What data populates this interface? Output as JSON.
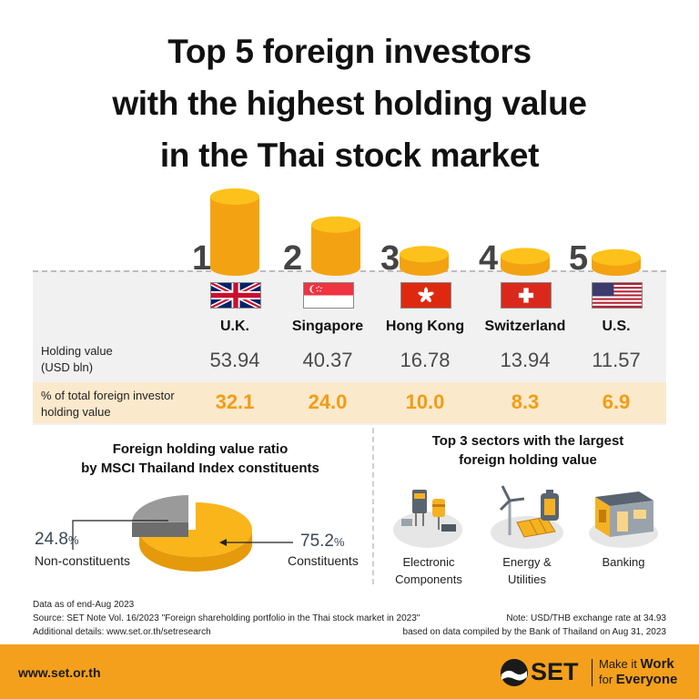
{
  "title_lines": [
    "Top 5 foreign investors",
    "with the highest holding value",
    "in the Thai stock market"
  ],
  "chart_data": {
    "type": "table",
    "categories": [
      "U.K.",
      "Singapore",
      "Hong Kong",
      "Switzerland",
      "U.S."
    ],
    "ranks": [
      "1",
      "2",
      "3",
      "4",
      "5"
    ],
    "series": [
      {
        "name": "Holding value (USD bln)",
        "values": [
          53.94,
          40.37,
          16.78,
          13.94,
          11.57
        ]
      },
      {
        "name": "% of total foreign investor holding value",
        "values": [
          32.1,
          24.0,
          10.0,
          8.3,
          6.9
        ]
      }
    ]
  },
  "hv_text": [
    "53.94",
    "40.37",
    "16.78",
    "13.94",
    "11.57"
  ],
  "pct_text": [
    "32.1",
    "24.0",
    "10.0",
    "8.3",
    "6.9"
  ],
  "row_labels": {
    "holding_line1": "Holding value",
    "holding_line2": "(USD bln)",
    "pct_line1": "% of total foreign investor",
    "pct_line2": "holding value"
  },
  "pie": {
    "type": "pie",
    "title_line1": "Foreign holding value ratio",
    "title_line2": "by MSCI Thailand Index constituents",
    "non_value": "24.8",
    "con_value": "75.2",
    "unit": "%",
    "non_label": "Non-constituents",
    "con_label": "Constituents",
    "values": [
      75.2,
      24.8
    ],
    "colors": [
      "#f9b51a",
      "#9a9a9a"
    ]
  },
  "sectors": {
    "title_line1": "Top 3 sectors with the largest",
    "title_line2": "foreign holding value",
    "items": [
      {
        "line1": "Electronic",
        "line2": "Components",
        "icon": "electronic-components-icon"
      },
      {
        "line1": "Energy &",
        "line2": "Utilities",
        "icon": "energy-utilities-icon"
      },
      {
        "line1": "Banking",
        "line2": "",
        "icon": "bank-icon"
      }
    ]
  },
  "footnotes": {
    "left1": "Data as of end-Aug 2023",
    "left2": "Source: SET Note Vol. 16/2023 \"Foreign shareholding portfolio in the Thai stock market in 2023\"",
    "left3": "Additional details: www.set.or.th/setresearch",
    "right1": "Note: USD/THB exchange rate at 34.93",
    "right2": "based on data compiled by the Bank of Thailand on Aug 31, 2023"
  },
  "footer": {
    "site": "www.set.or.th",
    "logo_text": "SET",
    "slogan_line1_a": "Make it",
    "slogan_line1_b": "Work",
    "slogan_line2_a": "for",
    "slogan_line2_b": "Everyone"
  },
  "colors": {
    "accent": "#f4a01c",
    "coin_top": "#fcc21b",
    "coin_side": "#f3a312",
    "pct_text": "#f39c12",
    "band": "#fbe9cc"
  }
}
